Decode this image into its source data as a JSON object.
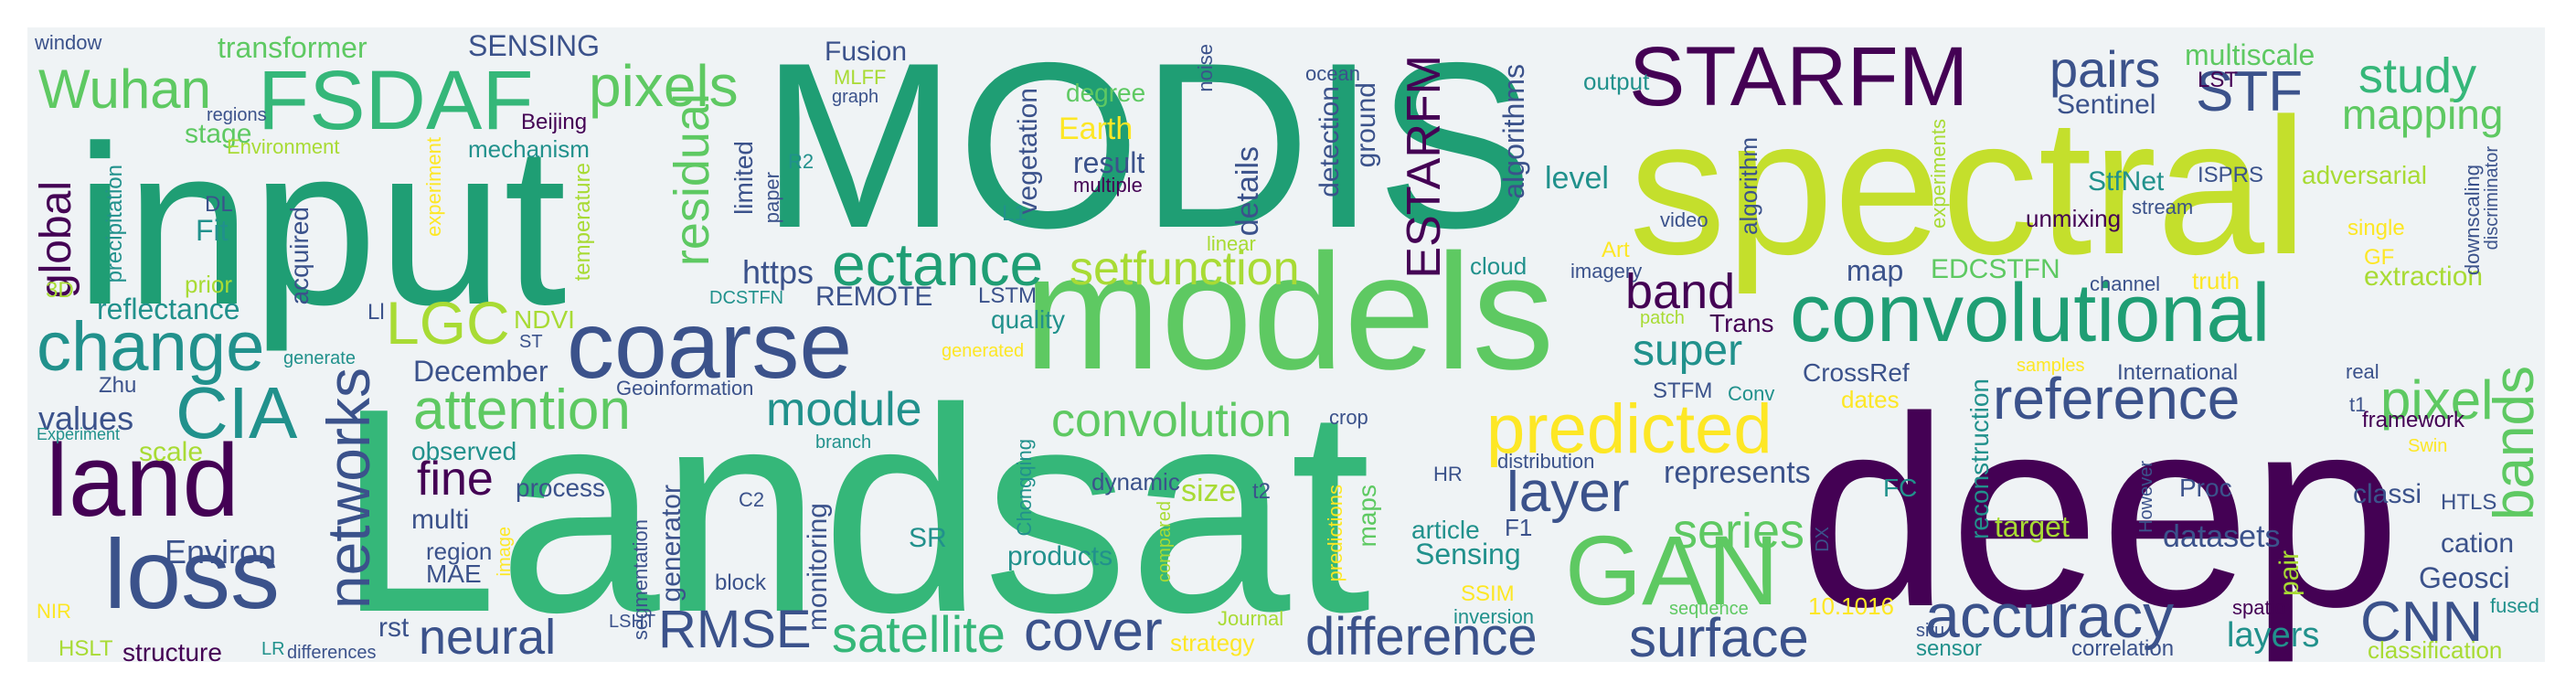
{
  "colors": {
    "background": "#eff3f5",
    "palette": [
      "#440154",
      "#3b528b",
      "#21918c",
      "#1f9e74",
      "#35b779",
      "#5ec962",
      "#a8db34",
      "#fde725"
    ]
  },
  "words": [
    "MODIS",
    "Landsat",
    "deep",
    "input",
    "spectral",
    "models",
    "coarse",
    "convolutional",
    "STARFM",
    "FSDAF",
    "Wuhan",
    "pixels",
    "ESTARFM",
    "STF",
    "study",
    "mapping",
    "pairs",
    "multiscale",
    "LST",
    "residual",
    "ectance",
    "setfunction",
    "reference",
    "change",
    "LGC",
    "CIA",
    "land",
    "loss",
    "networks",
    "attention",
    "module",
    "convolution",
    "predicted",
    "GAN",
    "accuracy",
    "surface",
    "difference",
    "cover",
    "satellite",
    "RMSE",
    "neural",
    "fine",
    "layer",
    "series",
    "super",
    "band",
    "bands",
    "pixel",
    "CNN",
    "datasets",
    "layers",
    "Geosci",
    "cation",
    "classification",
    "global",
    "reflectance",
    "values",
    "scale",
    "Environ",
    "structure",
    "HSLT",
    "NIR",
    "Experiment",
    "Zhu",
    "3D",
    "precipitation",
    "window",
    "transformer",
    "SENSING",
    "Fusion",
    "MLFF",
    "graph",
    "stage",
    "regions",
    "Environment",
    "Beijing",
    "mechanism",
    "experiment",
    "temperature",
    "R2",
    "paper",
    "limited",
    "DL",
    "Fit",
    "prior",
    "acquired",
    "https",
    "DCSTFN",
    "REMOTE",
    "LSTM",
    "quality",
    "generated",
    "NDVI",
    "ST",
    "December",
    "generate",
    "Geoinformation",
    "observed",
    "process",
    "multi",
    "region",
    "MAE",
    "image",
    "segmentation",
    "generator",
    "rst",
    "LSHT",
    "block",
    "C2",
    "branch",
    "monitoring",
    "SR",
    "Chongqing",
    "products",
    "dynamic",
    "compared",
    "size",
    "t2",
    "Journal",
    "strategy",
    "predictions",
    "maps",
    "crop",
    "article",
    "F1",
    "Sensing",
    "SSIM",
    "inversion",
    "HR",
    "distribution",
    "STFM",
    "Conv",
    "CrossRef",
    "dates",
    "DX",
    "10.1016",
    "represents",
    "situ",
    "sensor",
    "sequence",
    "target",
    "FC",
    "reconstruction",
    "However",
    "International",
    "samples",
    "real",
    "t1",
    "framework",
    "Swin",
    "HTLS",
    "classi",
    "Proc",
    "spatio",
    "pair",
    "correlation",
    "fused",
    "Earth",
    "degree",
    "noise",
    "ocean",
    "vegetation",
    "result",
    "multiple",
    "L1",
    "details",
    "linear",
    "detection",
    "ground",
    "algorithms",
    "level",
    "algorithm",
    "output",
    "video",
    "experiments",
    "cloud",
    "Art",
    "imagery",
    "patch",
    "Trans",
    "map",
    "EDCSTFN",
    "channel",
    "truth",
    "Sentinel",
    "StfNet",
    "ISPRS",
    "stream",
    "unmixing",
    "adversarial",
    "single",
    "GF",
    "extraction",
    "downscaling",
    "discriminator",
    "differences",
    "LR",
    "Ll"
  ]
}
